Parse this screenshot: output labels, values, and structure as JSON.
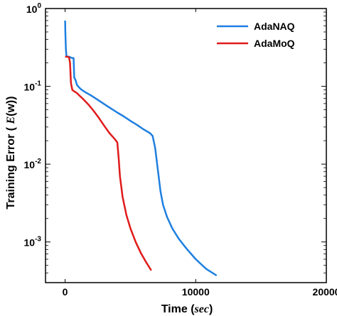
{
  "chart_data": {
    "type": "line",
    "xlabel": "Time (sec)",
    "xlabel_main": "Time",
    "xlabel_unit": "sec",
    "ylabel": "Training Error ( E(w))",
    "ylabel_main": "Training Error (",
    "ylabel_sym": "E",
    "ylabel_tail": "(w))",
    "x_scale": "linear",
    "y_scale": "log",
    "xlim": [
      -1500,
      20000
    ],
    "ylim": [
      0.0003,
      1
    ],
    "x_ticks": [
      0,
      10000,
      20000
    ],
    "x_tick_labels": [
      "0",
      "10000",
      "20000"
    ],
    "y_ticks": [
      1,
      0.1,
      0.01,
      0.001
    ],
    "y_tick_labels": [
      {
        "base": "10",
        "exp": "0"
      },
      {
        "base": "10",
        "exp": "-1"
      },
      {
        "base": "10",
        "exp": "-2"
      },
      {
        "base": "10",
        "exp": "-3"
      }
    ],
    "legend_position": "top-right",
    "series": [
      {
        "name": "AdaNAQ",
        "color": "#1e7fe0",
        "x": [
          0,
          20,
          60,
          100,
          150,
          200,
          280,
          320,
          400,
          500,
          650,
          700,
          800,
          900,
          1000,
          1200,
          1500,
          2000,
          2500,
          3000,
          3500,
          4000,
          4500,
          5000,
          5500,
          6000,
          6500,
          6700,
          6900,
          7100,
          7300,
          7500,
          7800,
          8200,
          8700,
          9300,
          10000,
          10800,
          11600
        ],
        "y": [
          0.7,
          0.5,
          0.3,
          0.25,
          0.24,
          0.24,
          0.24,
          0.24,
          0.236,
          0.232,
          0.23,
          0.13,
          0.12,
          0.105,
          0.1,
          0.092,
          0.085,
          0.076,
          0.067,
          0.059,
          0.052,
          0.046,
          0.041,
          0.036,
          0.032,
          0.028,
          0.025,
          0.023,
          0.016,
          0.0085,
          0.0045,
          0.003,
          0.0021,
          0.0015,
          0.0011,
          0.00082,
          0.0006,
          0.00045,
          0.00037
        ]
      },
      {
        "name": "AdaMoQ",
        "color": "#e01a1a",
        "x": [
          0,
          100,
          200,
          300,
          380,
          450,
          550,
          700,
          900,
          1100,
          1400,
          1800,
          2200,
          2600,
          3000,
          3400,
          3800,
          4000,
          4100,
          4200,
          4400,
          4700,
          5000,
          5400,
          5800,
          6200,
          6600
        ],
        "y": [
          0.24,
          0.24,
          0.24,
          0.235,
          0.2,
          0.11,
          0.09,
          0.086,
          0.082,
          0.076,
          0.068,
          0.058,
          0.048,
          0.039,
          0.031,
          0.025,
          0.021,
          0.019,
          0.012,
          0.007,
          0.0038,
          0.0022,
          0.0015,
          0.001,
          0.00072,
          0.00055,
          0.00043
        ]
      }
    ]
  }
}
